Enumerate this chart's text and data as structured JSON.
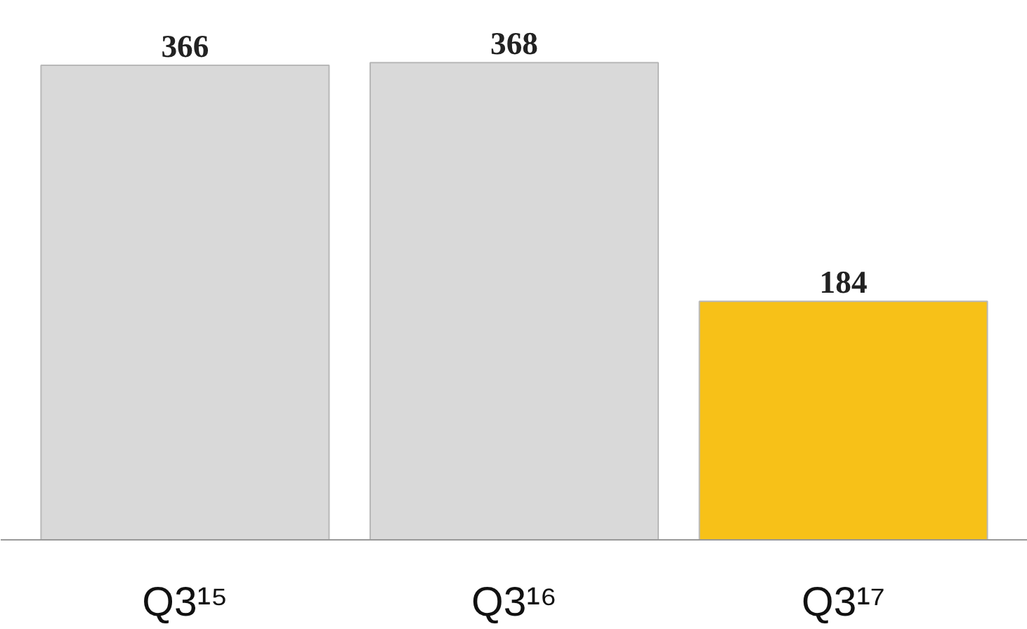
{
  "chart_data": {
    "type": "bar",
    "categories": [
      "Q3¹⁵",
      "Q3¹⁶",
      "Q3¹⁷"
    ],
    "values": [
      366,
      368,
      184
    ],
    "colors": [
      "#d9d9d9",
      "#d9d9d9",
      "#f7c118"
    ],
    "data_labels": true
  }
}
